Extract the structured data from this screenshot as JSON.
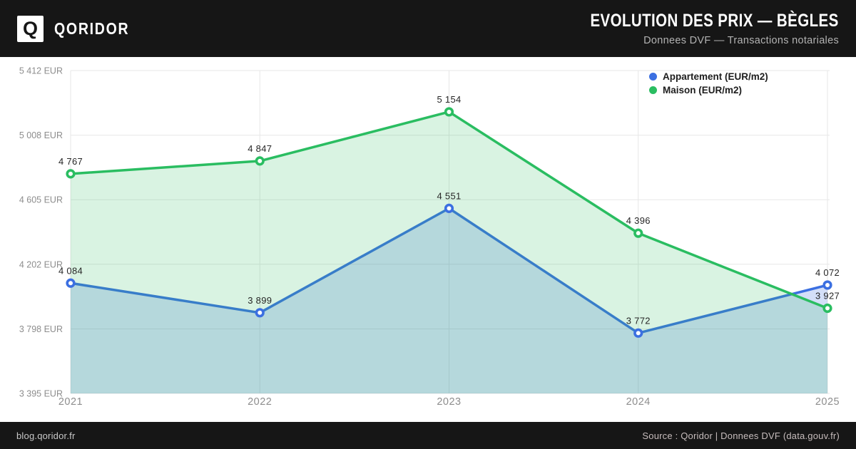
{
  "header": {
    "brand": "QORIDOR",
    "logo_letter": "Q",
    "title": "EVOLUTION DES PRIX — BÈGLES",
    "subtitle": "Donnees DVF — Transactions notariales"
  },
  "chart_data": {
    "type": "line",
    "title": "Evolution des prix — Bègles",
    "x": [
      "2021",
      "2022",
      "2023",
      "2024",
      "2025"
    ],
    "xlabel": "",
    "ylabel": "EUR/m2",
    "ylim": [
      3395,
      5412
    ],
    "grid": true,
    "area_fill": true,
    "legend_position": "top-right",
    "colors": {
      "background": "#ffffff",
      "banner": "#161616",
      "gridline": "#e7e7e7",
      "axis_text": "#8d8d8d",
      "value_text": "#262626"
    },
    "y_ticks": [
      {
        "value": 5412,
        "label": "5 412 EUR"
      },
      {
        "value": 5008,
        "label": "5 008 EUR"
      },
      {
        "value": 4605,
        "label": "4 605 EUR"
      },
      {
        "value": 4202,
        "label": "4 202 EUR"
      },
      {
        "value": 3798,
        "label": "3 798 EUR"
      },
      {
        "value": 3395,
        "label": "3 395 EUR"
      }
    ],
    "series": [
      {
        "name": "Appartement (EUR/m2)",
        "color": "#3b6fe1",
        "fill": "rgba(59,111,225,0.22)",
        "values": [
          4084,
          3899,
          4551,
          3772,
          4072
        ],
        "labels": [
          "4 084",
          "3 899",
          "4 551",
          "3 772",
          "4 072"
        ]
      },
      {
        "name": "Maison (EUR/m2)",
        "color": "#2abd61",
        "fill": "rgba(42,189,97,0.18)",
        "values": [
          4767,
          4847,
          5154,
          4396,
          3927
        ],
        "labels": [
          "4 767",
          "4 847",
          "5 154",
          "4 396",
          "3 927"
        ]
      }
    ]
  },
  "footer": {
    "site": "blog.qoridor.fr",
    "source": "Source : Qoridor | Donnees DVF (data.gouv.fr)"
  }
}
